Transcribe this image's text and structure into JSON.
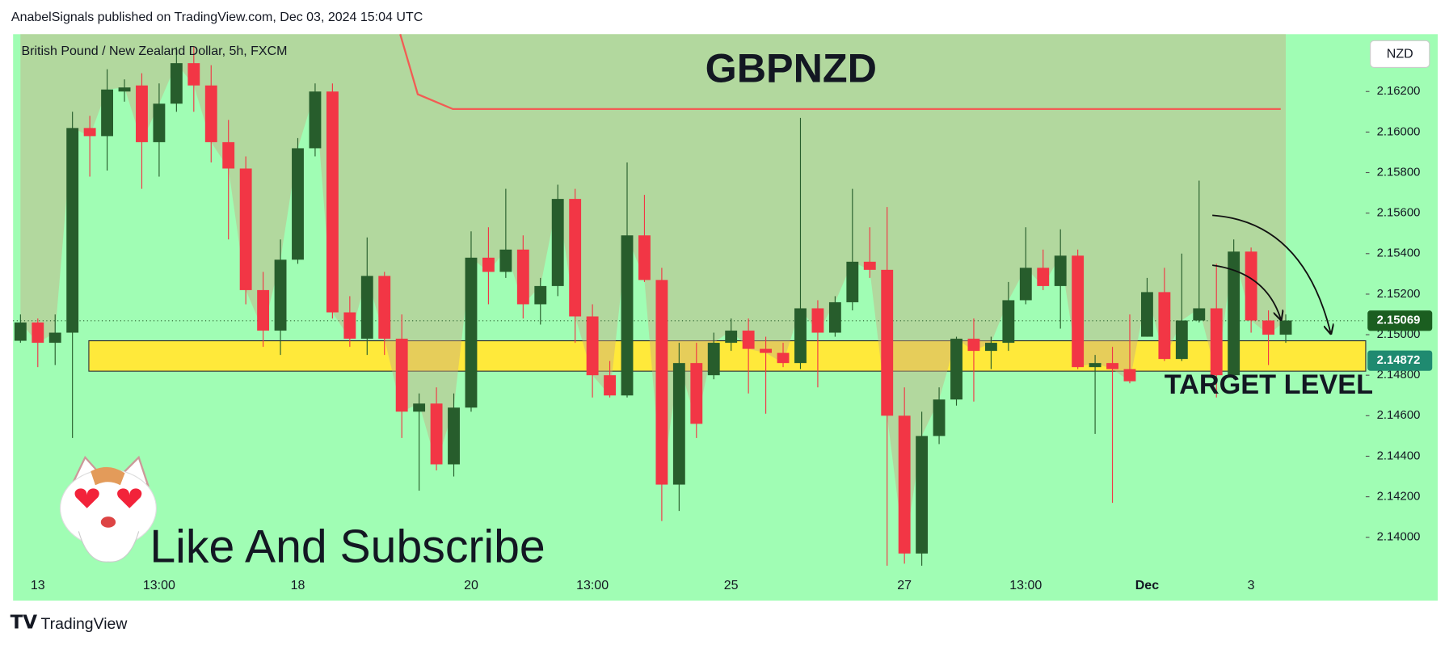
{
  "header": "AnabelSignals published on TradingView.com, Dec 03, 2024 15:04 UTC",
  "footer": "TradingView",
  "chart_data": {
    "type": "candlestick",
    "title": "GBPNZD",
    "subtitle": "British Pound / New Zealand Dollar, 5h, FXCM",
    "currency": "NZD",
    "annotations": [
      "TARGET LEVEL",
      "Like And Subscribe"
    ],
    "up_color": "#275d2c",
    "down_color": "#f23645",
    "ylim": [
      2.13815,
      2.16483
    ],
    "yticks": [
      {
        "value": 2.14,
        "label": "2.14000"
      },
      {
        "value": 2.142,
        "label": "2.14200"
      },
      {
        "value": 2.144,
        "label": "2.14400"
      },
      {
        "value": 2.146,
        "label": "2.14600"
      },
      {
        "value": 2.148,
        "label": "2.14800"
      },
      {
        "value": 2.15,
        "label": "2.15000"
      },
      {
        "value": 2.152,
        "label": "2.15200"
      },
      {
        "value": 2.154,
        "label": "2.15400"
      },
      {
        "value": 2.156,
        "label": "2.15600"
      },
      {
        "value": 2.158,
        "label": "2.15800"
      },
      {
        "value": 2.16,
        "label": "2.16000"
      },
      {
        "value": 2.162,
        "label": "2.16200"
      }
    ],
    "last_price": 2.15069,
    "target_price": 2.14872,
    "target_zone": [
      2.1482,
      2.1497
    ],
    "categories": [
      null,
      "13",
      null,
      null,
      null,
      null,
      null,
      null,
      "13:00",
      null,
      null,
      null,
      null,
      null,
      null,
      null,
      "18",
      null,
      null,
      null,
      null,
      null,
      null,
      null,
      null,
      null,
      "20",
      null,
      null,
      null,
      null,
      null,
      null,
      "13:00",
      null,
      null,
      null,
      null,
      null,
      null,
      null,
      "25",
      null,
      null,
      null,
      null,
      null,
      null,
      null,
      null,
      null,
      "27",
      null,
      null,
      null,
      null,
      null,
      null,
      "13:00",
      null,
      null,
      null,
      null,
      null,
      null,
      "Dec",
      null,
      null,
      null,
      null,
      null,
      "3",
      null,
      null
    ],
    "ohlc": [
      [
        2.1497,
        2.151,
        2.1496,
        2.1506
      ],
      [
        2.1506,
        2.1508,
        2.1484,
        2.1496
      ],
      [
        2.1496,
        2.151,
        2.1485,
        2.1501
      ],
      [
        2.1501,
        2.161,
        2.1449,
        2.1602
      ],
      [
        2.1602,
        2.1608,
        2.1578,
        2.1598
      ],
      [
        2.1598,
        2.1631,
        2.1581,
        2.1621
      ],
      [
        2.162,
        2.1626,
        2.1615,
        2.1622
      ],
      [
        2.1623,
        2.1629,
        2.1572,
        2.1595
      ],
      [
        2.1595,
        2.1624,
        2.1578,
        2.1614
      ],
      [
        2.1614,
        2.1642,
        2.161,
        2.1634
      ],
      [
        2.1634,
        2.1642,
        2.161,
        2.1623
      ],
      [
        2.1623,
        2.1633,
        2.1585,
        2.1595
      ],
      [
        2.1595,
        2.1606,
        2.1547,
        2.1582
      ],
      [
        2.1582,
        2.1588,
        2.1515,
        2.1522
      ],
      [
        2.1522,
        2.1531,
        2.1494,
        2.1502
      ],
      [
        2.1502,
        2.1547,
        2.149,
        2.1537
      ],
      [
        2.1537,
        2.1597,
        2.1535,
        2.1592
      ],
      [
        2.1592,
        2.1624,
        2.1588,
        2.162
      ],
      [
        2.162,
        2.1624,
        2.1508,
        2.1511
      ],
      [
        2.1511,
        2.1519,
        2.1494,
        2.1498
      ],
      [
        2.1498,
        2.1548,
        2.149,
        2.1529
      ],
      [
        2.1529,
        2.1531,
        2.149,
        2.1498
      ],
      [
        2.1498,
        2.151,
        2.1449,
        2.1462
      ],
      [
        2.1462,
        2.1471,
        2.1423,
        2.1466
      ],
      [
        2.1466,
        2.1474,
        2.1433,
        2.1436
      ],
      [
        2.1436,
        2.1471,
        2.143,
        2.1464
      ],
      [
        2.1464,
        2.1551,
        2.1462,
        2.1538
      ],
      [
        2.1538,
        2.1553,
        2.1515,
        2.1531
      ],
      [
        2.1531,
        2.1572,
        2.1528,
        2.1542
      ],
      [
        2.1542,
        2.1549,
        2.1508,
        2.1515
      ],
      [
        2.1515,
        2.1528,
        2.1505,
        2.1524
      ],
      [
        2.1524,
        2.1574,
        2.1519,
        2.1567
      ],
      [
        2.1567,
        2.1572,
        2.1496,
        2.1509
      ],
      [
        2.1509,
        2.1515,
        2.1469,
        2.148
      ],
      [
        2.148,
        2.1487,
        2.1469,
        2.147
      ],
      [
        2.147,
        2.1585,
        2.1469,
        2.1549
      ],
      [
        2.1549,
        2.1569,
        2.1526,
        2.1527
      ],
      [
        2.1527,
        2.1533,
        2.1408,
        2.1426
      ],
      [
        2.1426,
        2.1496,
        2.1413,
        2.1486
      ],
      [
        2.1486,
        2.1496,
        2.1449,
        2.1456
      ],
      [
        2.148,
        2.1501,
        2.1478,
        2.1496
      ],
      [
        2.1496,
        2.1508,
        2.1492,
        2.1502
      ],
      [
        2.1502,
        2.1508,
        2.1471,
        2.1493
      ],
      [
        2.1493,
        2.1499,
        2.1461,
        2.1491
      ],
      [
        2.1491,
        2.1496,
        2.1484,
        2.1486
      ],
      [
        2.1486,
        2.1607,
        2.1483,
        2.1513
      ],
      [
        2.1513,
        2.1517,
        2.1474,
        2.1501
      ],
      [
        2.1501,
        2.1519,
        2.1499,
        2.1516
      ],
      [
        2.1516,
        2.1572,
        2.1512,
        2.1536
      ],
      [
        2.1536,
        2.1553,
        2.1528,
        2.1532
      ],
      [
        2.1532,
        2.1563,
        2.1386,
        2.146
      ],
      [
        2.146,
        2.1474,
        2.1387,
        2.1392
      ],
      [
        2.1392,
        2.1462,
        2.1386,
        2.145
      ],
      [
        2.145,
        2.1474,
        2.1446,
        2.1468
      ],
      [
        2.1468,
        2.1499,
        2.1465,
        2.1498
      ],
      [
        2.1498,
        2.1508,
        2.1467,
        2.1492
      ],
      [
        2.1492,
        2.1499,
        2.1483,
        2.1496
      ],
      [
        2.1496,
        2.1526,
        2.1492,
        2.1517
      ],
      [
        2.1517,
        2.1553,
        2.1515,
        2.1533
      ],
      [
        2.1533,
        2.1542,
        2.1522,
        2.1524
      ],
      [
        2.1524,
        2.1552,
        2.1503,
        2.1539
      ],
      [
        2.1539,
        2.1542,
        2.1483,
        2.1484
      ],
      [
        2.1484,
        2.149,
        2.1451,
        2.1486
      ],
      [
        2.1486,
        2.1494,
        2.1417,
        2.1483
      ],
      [
        2.1483,
        2.151,
        2.1476,
        2.1477
      ],
      [
        2.1499,
        2.1528,
        2.1499,
        2.1521
      ],
      [
        2.1521,
        2.1533,
        2.1487,
        2.1488
      ],
      [
        2.1488,
        2.154,
        2.1487,
        2.1507
      ],
      [
        2.1507,
        2.1576,
        2.1506,
        2.1513
      ],
      [
        2.1513,
        2.1535,
        2.1469,
        2.148
      ],
      [
        2.148,
        2.1547,
        2.1478,
        2.1541
      ],
      [
        2.1541,
        2.1543,
        2.1501,
        2.1507
      ],
      [
        2.1507,
        2.1512,
        2.1485,
        2.15
      ],
      [
        2.15,
        2.151,
        2.1496,
        2.1507
      ]
    ]
  }
}
